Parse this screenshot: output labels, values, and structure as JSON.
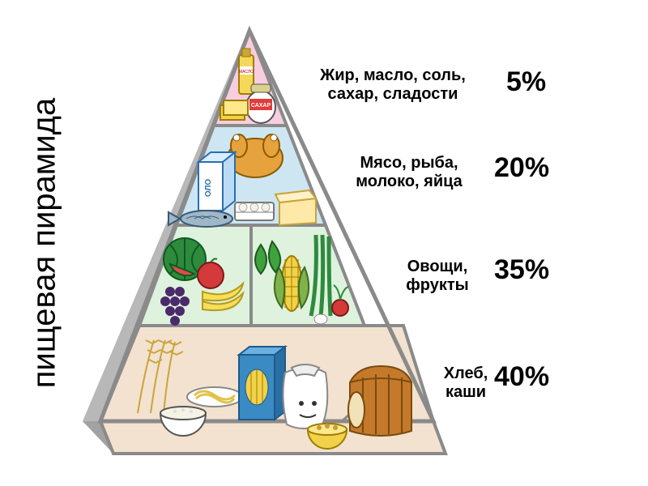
{
  "title": "пищевая пирамида",
  "title_fontsize": 40,
  "percent_fontsize": 34,
  "label_fontsize": 20,
  "colors": {
    "outline": "#8a8a8a",
    "bg": "#ffffff",
    "side_shadow1": "#c9c9c9",
    "side_shadow2": "#9f9f9f",
    "tier_fill": {
      "top": "#f7cde0",
      "upper": "#cde6f1",
      "mid": "#def2de",
      "base": "#f2e2cf"
    }
  },
  "pyramid": {
    "type": "infographic",
    "tiers": [
      {
        "label": "Жир, масло, соль,\nсахар, сладости",
        "percent": "5%"
      },
      {
        "label": "Мясо, рыба,\nмолоко, яйца",
        "percent": "20%"
      },
      {
        "label": "Овощи,\nфрукты",
        "percent": "35%"
      },
      {
        "label": "Хлеб,\nкаши",
        "percent": "40%"
      }
    ]
  },
  "food_labels": {
    "oil": "МАСЛО",
    "sugar": "САХАР",
    "milk_carton": "ОЛО"
  }
}
